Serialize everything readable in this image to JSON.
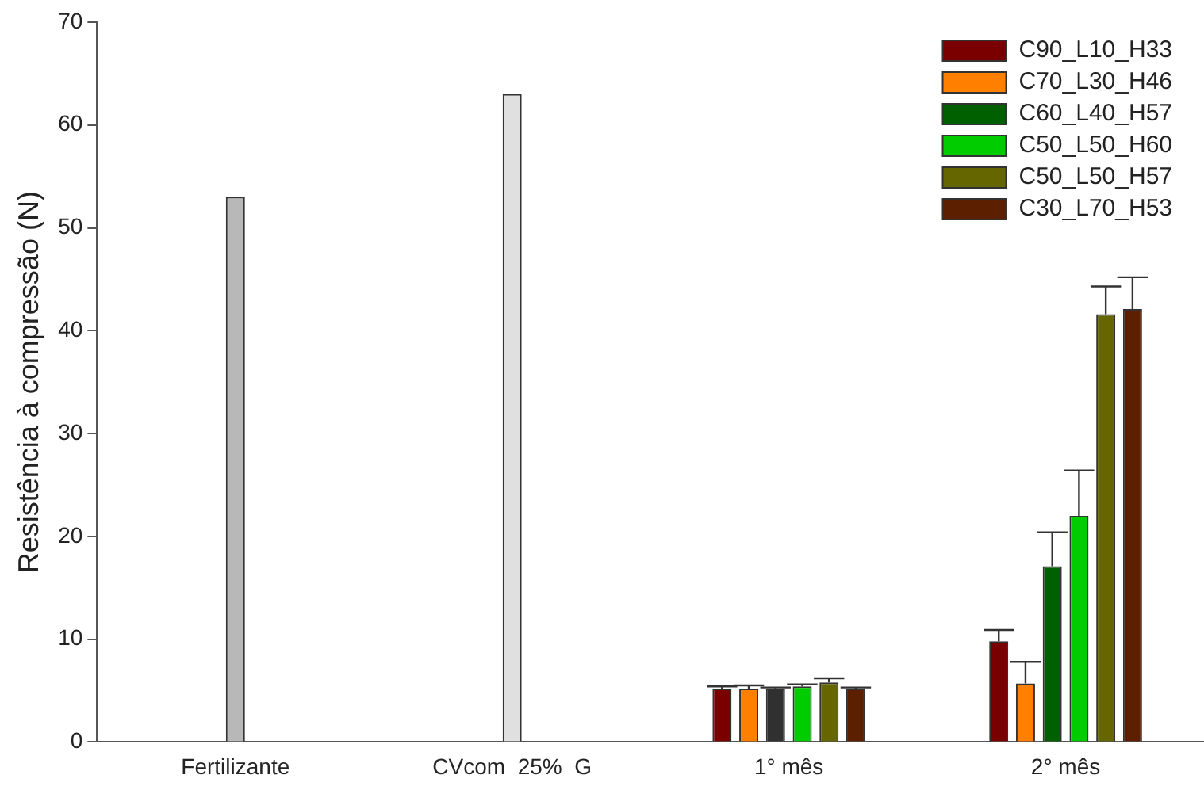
{
  "chart_data": {
    "type": "bar",
    "ylabel": "Resistência à compressão (N)",
    "categories": [
      "Fertilizante",
      "CVcom  25%  G",
      "1° mês",
      "2° mês"
    ],
    "series": [
      {
        "color": "#b8b8b8",
        "values": [
          53,
          null,
          null,
          null
        ]
      },
      {
        "color": "#e0e0e0",
        "values": [
          null,
          63,
          null,
          null
        ]
      },
      {
        "name": "C90_L10_H33",
        "color": "#7a0000",
        "values": [
          null,
          null,
          5.2,
          9.8
        ],
        "errors": [
          null,
          null,
          [
            5.2,
            5.4
          ],
          [
            9.8,
            10.9
          ]
        ]
      },
      {
        "name": "C70_L30_H46",
        "color": "#ff8000",
        "values": [
          null,
          null,
          5.2,
          5.7
        ],
        "errors": [
          null,
          null,
          [
            5.2,
            5.5
          ],
          [
            5.7,
            7.8
          ]
        ]
      },
      {
        "name": "C60_L40_H57",
        "color": "#006000",
        "colors": [
          null,
          null,
          "#303030",
          "#006000"
        ],
        "values": [
          null,
          null,
          5.2,
          17.1
        ],
        "errors": [
          null,
          null,
          [
            5.2,
            5.3
          ],
          [
            17.1,
            20.4
          ]
        ]
      },
      {
        "name": "C50_L50_H60",
        "color": "#00cc00",
        "values": [
          null,
          null,
          5.4,
          22.0
        ],
        "errors": [
          null,
          null,
          [
            5.4,
            5.6
          ],
          [
            22.0,
            26.4
          ]
        ]
      },
      {
        "name": "C50_L50_H57",
        "color": "#666600",
        "values": [
          null,
          null,
          5.8,
          41.6
        ],
        "errors": [
          null,
          null,
          [
            5.8,
            6.2
          ],
          [
            41.6,
            44.3
          ]
        ]
      },
      {
        "name": "C30_L70_H53",
        "color": "#5c1f00",
        "values": [
          null,
          null,
          5.2,
          42.1
        ],
        "errors": [
          null,
          null,
          [
            5.2,
            5.3
          ],
          [
            42.1,
            45.2
          ]
        ]
      }
    ],
    "ylim": [
      0,
      70
    ],
    "yticks": [
      0,
      10,
      20,
      30,
      40,
      50,
      60,
      70
    ],
    "grid": false,
    "legend": "top right"
  }
}
